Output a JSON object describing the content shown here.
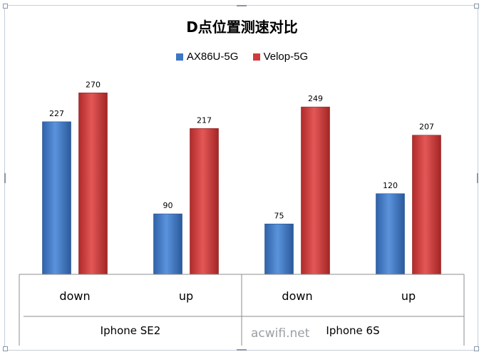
{
  "chart_data": {
    "type": "bar",
    "title": "D点位置测速对比",
    "categories": [
      "down",
      "up",
      "down",
      "up"
    ],
    "groups": [
      {
        "label": "Iphone SE2",
        "categories": [
          "down",
          "up"
        ]
      },
      {
        "label": "Iphone 6S",
        "categories": [
          "down",
          "up"
        ]
      }
    ],
    "series": [
      {
        "name": "AX86U-5G",
        "values": [
          227,
          90,
          75,
          120
        ],
        "color": "#3d77c4"
      },
      {
        "name": "Velop-5G",
        "values": [
          270,
          217,
          249,
          207
        ],
        "color": "#d23b3b"
      }
    ],
    "ylim": [
      0,
      300
    ],
    "grid": false,
    "legend_position": "top"
  },
  "watermark": "acwifi.net"
}
